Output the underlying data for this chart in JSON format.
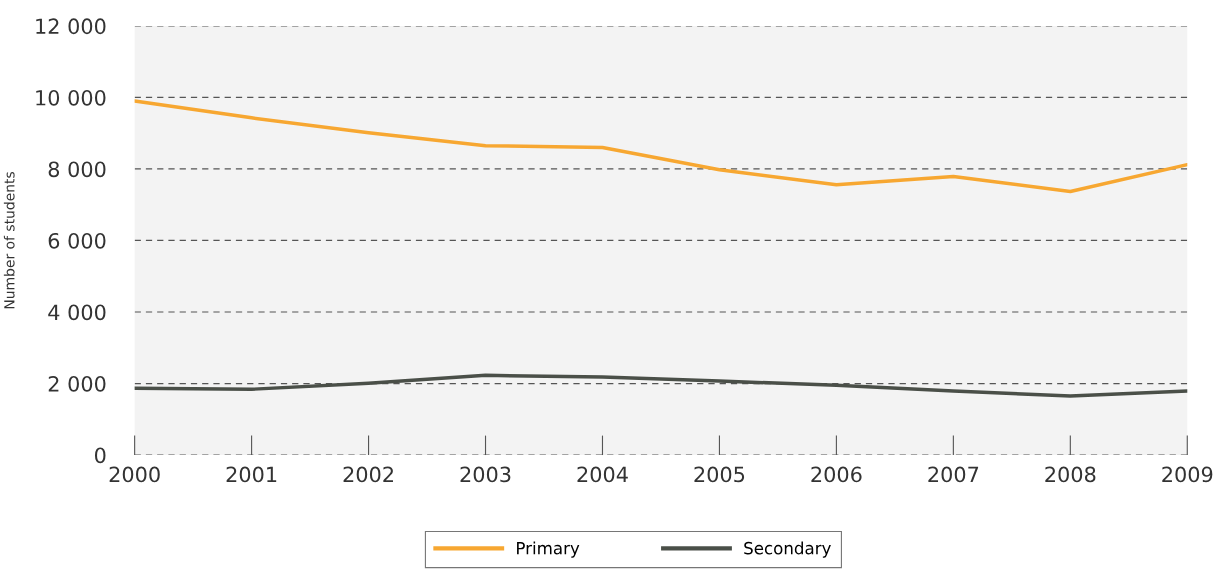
{
  "chart_data": {
    "type": "line",
    "ylabel": "Number of students",
    "x": [
      2000,
      2001,
      2002,
      2003,
      2004,
      2005,
      2006,
      2007,
      2008,
      2009
    ],
    "series": [
      {
        "name": "Primary",
        "color": "#f7a731",
        "values": [
          9900,
          9430,
          9010,
          8650,
          8600,
          7980,
          7560,
          7790,
          7370,
          8120
        ]
      },
      {
        "name": "Secondary",
        "color": "#4a4f48",
        "values": [
          1870,
          1840,
          2010,
          2230,
          2180,
          2070,
          1950,
          1790,
          1650,
          1790
        ]
      }
    ],
    "xlim": [
      2000,
      2009
    ],
    "xticks": [
      2000,
      2001,
      2002,
      2003,
      2004,
      2005,
      2006,
      2007,
      2008,
      2009
    ],
    "ylim": [
      0,
      12000
    ],
    "yticks": [
      {
        "value": 0,
        "label": "0"
      },
      {
        "value": 2000,
        "label": "2 000"
      },
      {
        "value": 4000,
        "label": "4 000"
      },
      {
        "value": 6000,
        "label": "6 000"
      },
      {
        "value": 8000,
        "label": "8 000"
      },
      {
        "value": 10000,
        "label": "10 000"
      },
      {
        "value": 12000,
        "label": "12 000"
      }
    ],
    "grid": "y",
    "legend": "bottom",
    "line_style": "solid",
    "marker": "none"
  }
}
